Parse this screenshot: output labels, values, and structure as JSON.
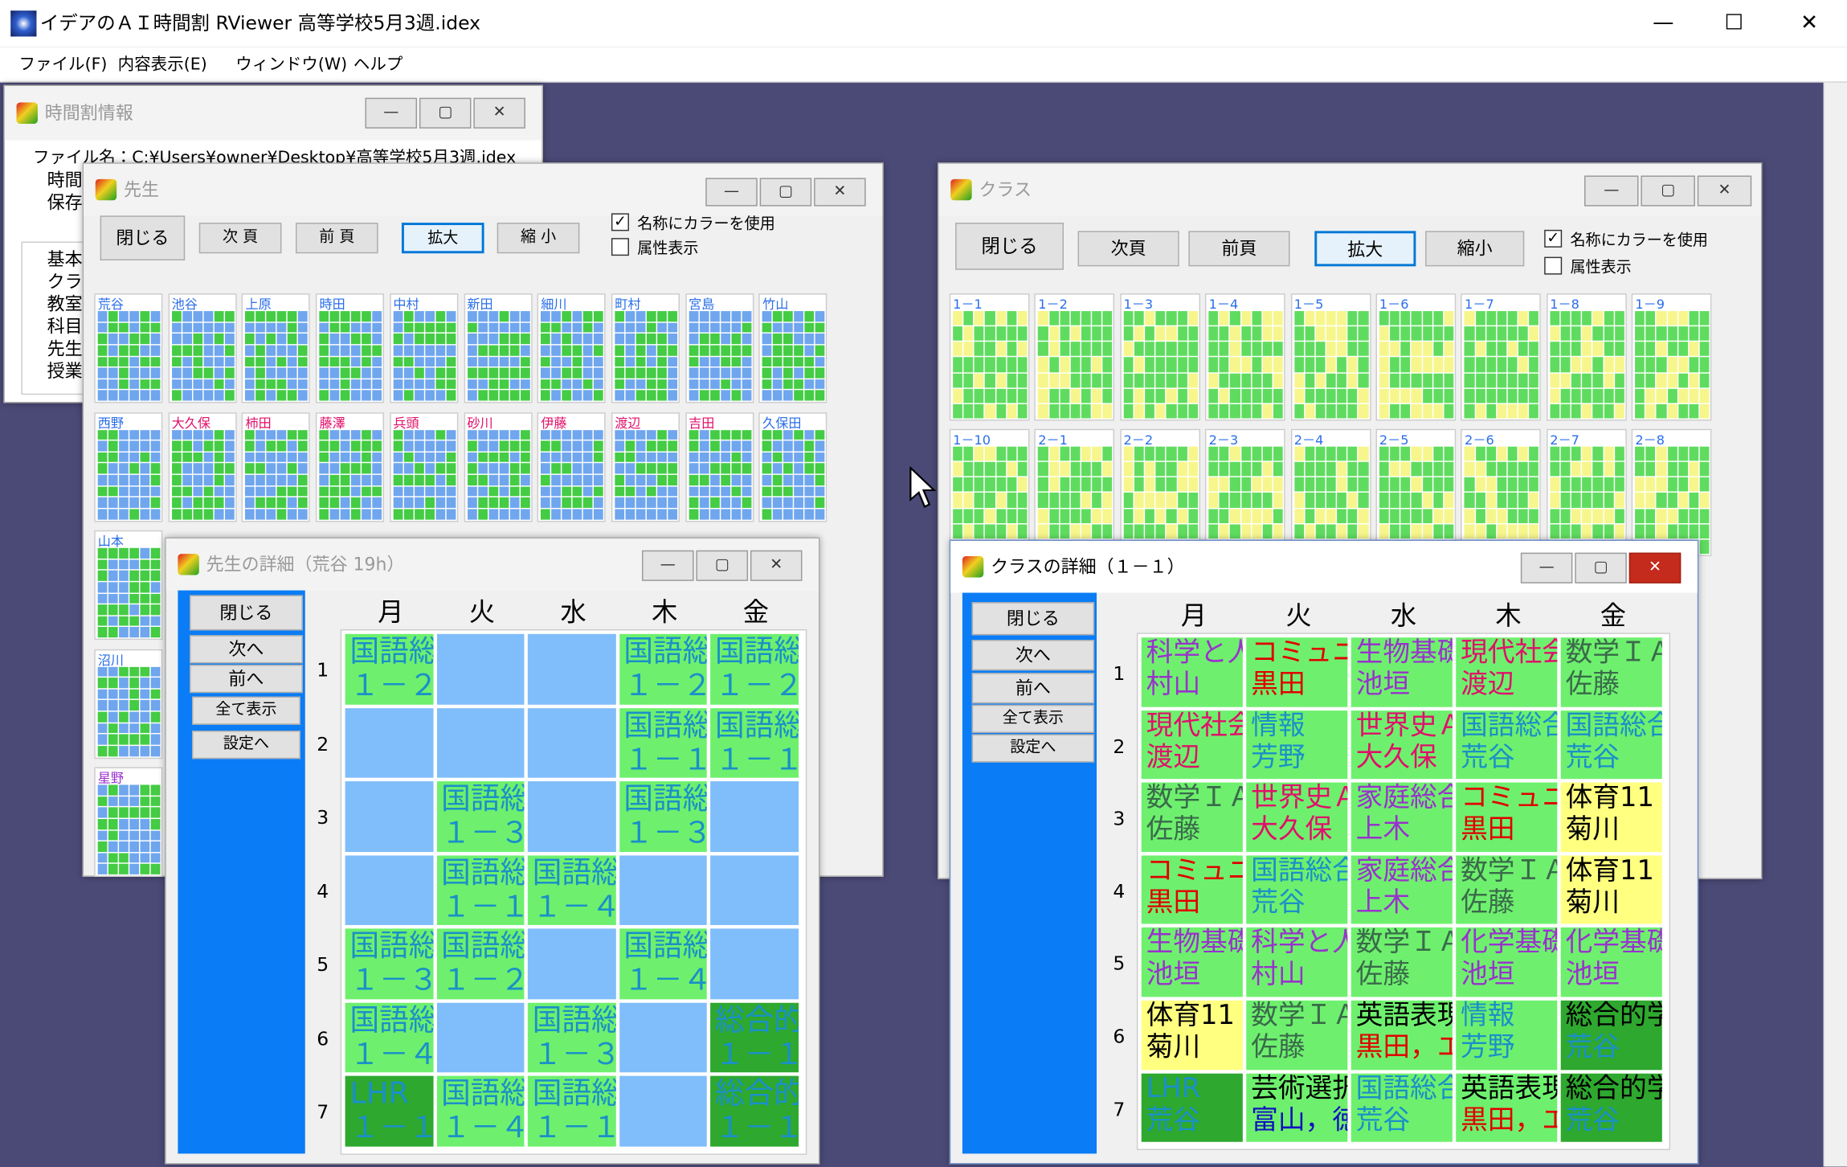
{
  "app": {
    "title": "イデアのＡＩ時間割 RViewer 高等学校5月3週.idex",
    "menu": [
      "ファイル(F)",
      "内容表示(E)",
      "ウィンドウ(W)",
      "ヘルプ"
    ]
  },
  "info_window": {
    "title": "時間割情報",
    "file": "ファイル名：C:¥Users¥owner¥Desktop¥高等学校5月3週.idex",
    "lines": [
      "時間",
      "保存"
    ],
    "items": [
      "基本",
      "クラス",
      "教室",
      "科目",
      "先生",
      "授業"
    ]
  },
  "teacher_window": {
    "title": "先生",
    "buttons": [
      "閉じる",
      "次 頁",
      "前 頁",
      "拡大",
      "縮 小"
    ],
    "checkboxes": [
      {
        "label": "名称にカラーを使用",
        "checked": true
      },
      {
        "label": "属性表示",
        "checked": false
      }
    ],
    "rows": [
      [
        {
          "name": "荒谷",
          "color": "#2a6ee8"
        },
        {
          "name": "池谷",
          "color": "#2a6ee8"
        },
        {
          "name": "上原",
          "color": "#2a6ee8"
        },
        {
          "name": "時田",
          "color": "#2a6ee8"
        },
        {
          "name": "中村",
          "color": "#2a6ee8"
        },
        {
          "name": "新田",
          "color": "#2a6ee8"
        },
        {
          "name": "細川",
          "color": "#2a6ee8"
        },
        {
          "name": "町村",
          "color": "#2a6ee8"
        },
        {
          "name": "宮島",
          "color": "#2a6ee8"
        },
        {
          "name": "竹山",
          "color": "#2a6ee8"
        }
      ],
      [
        {
          "name": "西野",
          "color": "#2a6ee8"
        },
        {
          "name": "大久保",
          "color": "#e0106a"
        },
        {
          "name": "柿田",
          "color": "#e0106a"
        },
        {
          "name": "藤澤",
          "color": "#e0106a"
        },
        {
          "name": "兵頭",
          "color": "#e0106a"
        },
        {
          "name": "砂川",
          "color": "#e0106a"
        },
        {
          "name": "伊藤",
          "color": "#e0106a"
        },
        {
          "name": "渡辺",
          "color": "#e0106a"
        },
        {
          "name": "吉田",
          "color": "#e0106a"
        },
        {
          "name": "久保田",
          "color": "#2a6ee8"
        }
      ],
      [
        {
          "name": "山本",
          "color": "#2a6ee8"
        }
      ],
      [
        {
          "name": "沼川",
          "color": "#2a6ee8"
        }
      ],
      [
        {
          "name": "星野",
          "color": "#9932cc"
        }
      ]
    ]
  },
  "class_window": {
    "title": "クラス",
    "buttons": [
      "閉じる",
      "次頁",
      "前頁",
      "拡大",
      "縮小"
    ],
    "checkboxes": [
      {
        "label": "名称にカラーを使用",
        "checked": true
      },
      {
        "label": "属性表示",
        "checked": false
      }
    ],
    "rows": [
      [
        "1－1",
        "1－2",
        "1－3",
        "1－4",
        "1－5",
        "1－6",
        "1－7",
        "1－8",
        "1－9"
      ],
      [
        "1－10",
        "2－1",
        "2－2",
        "2－3",
        "2－4",
        "2－5",
        "2－6",
        "2－7",
        "2－8"
      ]
    ]
  },
  "teacher_detail": {
    "title": "先生の詳細（荒谷 19h）",
    "buttons": [
      "閉じる",
      "次へ",
      "前へ",
      "全て表示",
      "設定へ"
    ],
    "days": [
      "月",
      "火",
      "水",
      "木",
      "金"
    ],
    "periods": [
      "1",
      "2",
      "3",
      "4",
      "5",
      "6",
      "7"
    ],
    "cells": [
      [
        {
          "subject": "国語総合",
          "class": "１－２",
          "color": "#1a90c8",
          "bg": "#6ef06e"
        },
        null,
        null,
        {
          "subject": "国語総合",
          "class": "１－２",
          "color": "#1a90c8",
          "bg": "#6ef06e"
        },
        {
          "subject": "国語総合",
          "class": "１－２",
          "color": "#1a90c8",
          "bg": "#6ef06e"
        }
      ],
      [
        null,
        null,
        null,
        {
          "subject": "国語総合",
          "class": "１－１",
          "color": "#1a90c8",
          "bg": "#6ef06e"
        },
        {
          "subject": "国語総合",
          "class": "１－１",
          "color": "#1a90c8",
          "bg": "#6ef06e"
        }
      ],
      [
        null,
        {
          "subject": "国語総合",
          "class": "１－３",
          "color": "#1a90c8",
          "bg": "#6ef06e"
        },
        null,
        {
          "subject": "国語総合",
          "class": "１－３",
          "color": "#1a90c8",
          "bg": "#6ef06e"
        },
        null
      ],
      [
        null,
        {
          "subject": "国語総合",
          "class": "１－１",
          "color": "#1a90c8",
          "bg": "#6ef06e"
        },
        {
          "subject": "国語総合",
          "class": "１－４",
          "color": "#1a90c8",
          "bg": "#6ef06e"
        },
        null,
        null
      ],
      [
        {
          "subject": "国語総合",
          "class": "１－３",
          "color": "#1a90c8",
          "bg": "#6ef06e"
        },
        {
          "subject": "国語総合",
          "class": "１－２",
          "color": "#1a90c8",
          "bg": "#6ef06e"
        },
        null,
        {
          "subject": "国語総合",
          "class": "１－４",
          "color": "#1a90c8",
          "bg": "#6ef06e"
        },
        null
      ],
      [
        {
          "subject": "国語総合",
          "class": "１－４",
          "color": "#1a90c8",
          "bg": "#6ef06e"
        },
        null,
        {
          "subject": "国語総合",
          "class": "１－３",
          "color": "#1a90c8",
          "bg": "#6ef06e"
        },
        null,
        {
          "subject": "総合的学習",
          "class": "１－１",
          "color": "#1a90c8",
          "bg": "#2ea82e"
        }
      ],
      [
        {
          "subject": "LHR",
          "class": "１－１",
          "color": "#1a90c8",
          "bg": "#2ea82e"
        },
        {
          "subject": "国語総合",
          "class": "１－４",
          "color": "#1a90c8",
          "bg": "#6ef06e"
        },
        {
          "subject": "国語総合",
          "class": "１－１",
          "color": "#1a90c8",
          "bg": "#6ef06e"
        },
        null,
        {
          "subject": "総合的学習",
          "class": "１－１",
          "color": "#1a90c8",
          "bg": "#2ea82e"
        }
      ]
    ],
    "empty_color": "#80bdfb"
  },
  "class_detail": {
    "title": "クラスの詳細（１－１）",
    "buttons": [
      "閉じる",
      "次へ",
      "前へ",
      "全て表示",
      "設定へ"
    ],
    "days": [
      "月",
      "火",
      "水",
      "木",
      "金"
    ],
    "periods": [
      "1",
      "2",
      "3",
      "4",
      "5",
      "6",
      "7"
    ],
    "cells": [
      [
        {
          "subject": "科学と人間生活",
          "teacher": "村山",
          "subject_color": "#9932cc",
          "teacher_color": "#9932cc",
          "bg": "#6ef06e"
        },
        {
          "subject": "コミュニケーション英語",
          "teacher": "黒田",
          "subject_color": "#e00000",
          "teacher_color": "#e00000",
          "bg": "#6ef06e"
        },
        {
          "subject": "生物基礎",
          "teacher": "池垣",
          "subject_color": "#9932cc",
          "teacher_color": "#9932cc",
          "bg": "#6ef06e"
        },
        {
          "subject": "現代社会",
          "teacher": "渡辺",
          "subject_color": "#e0106a",
          "teacher_color": "#e0106a",
          "bg": "#6ef06e"
        },
        {
          "subject": "数学ＩＡ",
          "teacher": "佐藤",
          "subject_color": "#3a6a4a",
          "teacher_color": "#3a6a4a",
          "bg": "#6ef06e"
        }
      ],
      [
        {
          "subject": "現代社会",
          "teacher": "渡辺",
          "subject_color": "#e0106a",
          "teacher_color": "#e0106a",
          "bg": "#6ef06e"
        },
        {
          "subject": "情報",
          "teacher": "芳野",
          "subject_color": "#1a90c8",
          "teacher_color": "#1a90c8",
          "bg": "#6ef06e"
        },
        {
          "subject": "世界史Ａ",
          "teacher": "大久保",
          "subject_color": "#e0106a",
          "teacher_color": "#e0106a",
          "bg": "#6ef06e"
        },
        {
          "subject": "国語総合",
          "teacher": "荒谷",
          "subject_color": "#1a90c8",
          "teacher_color": "#1a90c8",
          "bg": "#6ef06e"
        },
        {
          "subject": "国語総合",
          "teacher": "荒谷",
          "subject_color": "#1a90c8",
          "teacher_color": "#1a90c8",
          "bg": "#6ef06e"
        }
      ],
      [
        {
          "subject": "数学ＩＡ",
          "teacher": "佐藤",
          "subject_color": "#3a6a4a",
          "teacher_color": "#3a6a4a",
          "bg": "#6ef06e"
        },
        {
          "subject": "世界史Ａ",
          "teacher": "大久保",
          "subject_color": "#e0106a",
          "teacher_color": "#e0106a",
          "bg": "#6ef06e"
        },
        {
          "subject": "家庭総合",
          "teacher": "上木",
          "subject_color": "#9932cc",
          "teacher_color": "#9932cc",
          "bg": "#6ef06e"
        },
        {
          "subject": "コミュニケーション英語",
          "teacher": "黒田",
          "subject_color": "#e00000",
          "teacher_color": "#e00000",
          "bg": "#6ef06e"
        },
        {
          "subject": "体育11",
          "teacher": "菊川",
          "subject_color": "#000000",
          "teacher_color": "#000000",
          "bg": "#ffff80"
        }
      ],
      [
        {
          "subject": "コミュニケーション英語",
          "teacher": "黒田",
          "subject_color": "#e00000",
          "teacher_color": "#e00000",
          "bg": "#6ef06e"
        },
        {
          "subject": "国語総合",
          "teacher": "荒谷",
          "subject_color": "#1a90c8",
          "teacher_color": "#1a90c8",
          "bg": "#6ef06e"
        },
        {
          "subject": "家庭総合",
          "teacher": "上木",
          "subject_color": "#9932cc",
          "teacher_color": "#9932cc",
          "bg": "#6ef06e"
        },
        {
          "subject": "数学ＩＡ",
          "teacher": "佐藤",
          "subject_color": "#3a6a4a",
          "teacher_color": "#3a6a4a",
          "bg": "#6ef06e"
        },
        {
          "subject": "体育11",
          "teacher": "菊川",
          "subject_color": "#000000",
          "teacher_color": "#000000",
          "bg": "#ffff80"
        }
      ],
      [
        {
          "subject": "生物基礎",
          "teacher": "池垣",
          "subject_color": "#9932cc",
          "teacher_color": "#9932cc",
          "bg": "#6ef06e"
        },
        {
          "subject": "科学と人間生活",
          "teacher": "村山",
          "subject_color": "#9932cc",
          "teacher_color": "#9932cc",
          "bg": "#6ef06e"
        },
        {
          "subject": "数学ＩＡ",
          "teacher": "佐藤",
          "subject_color": "#3a6a4a",
          "teacher_color": "#3a6a4a",
          "bg": "#6ef06e"
        },
        {
          "subject": "化学基礎",
          "teacher": "池垣",
          "subject_color": "#9932cc",
          "teacher_color": "#9932cc",
          "bg": "#6ef06e"
        },
        {
          "subject": "化学基礎",
          "teacher": "池垣",
          "subject_color": "#9932cc",
          "teacher_color": "#9932cc",
          "bg": "#6ef06e"
        }
      ],
      [
        {
          "subject": "体育11",
          "teacher": "菊川",
          "subject_color": "#000000",
          "teacher_color": "#000000",
          "bg": "#ffff80"
        },
        {
          "subject": "数学ＩＡ",
          "teacher": "佐藤",
          "subject_color": "#3a6a4a",
          "teacher_color": "#3a6a4a",
          "bg": "#6ef06e"
        },
        {
          "subject": "英語表現",
          "teacher": "黒田，エ",
          "subject_color": "#000000",
          "teacher_color": "#e00000",
          "bg": "#6ef06e"
        },
        {
          "subject": "情報",
          "teacher": "芳野",
          "subject_color": "#1a90c8",
          "teacher_color": "#1a90c8",
          "bg": "#6ef06e"
        },
        {
          "subject": "総合的学習",
          "teacher": "荒谷",
          "subject_color": "#000000",
          "teacher_color": "#1a90c8",
          "bg": "#2ea82e"
        }
      ],
      [
        {
          "subject": "LHR",
          "teacher": "荒谷",
          "subject_color": "#1a90c8",
          "teacher_color": "#1a90c8",
          "bg": "#2ea82e"
        },
        {
          "subject": "芸術選択",
          "teacher": "富山，徳",
          "subject_color": "#000000",
          "teacher_color": "#1010c0",
          "bg": "#6ef06e"
        },
        {
          "subject": "国語総合",
          "teacher": "荒谷",
          "subject_color": "#1a90c8",
          "teacher_color": "#1a90c8",
          "bg": "#6ef06e"
        },
        {
          "subject": "英語表現",
          "teacher": "黒田，エ",
          "subject_color": "#000000",
          "teacher_color": "#e00000",
          "bg": "#6ef06e"
        },
        {
          "subject": "総合的学習",
          "teacher": "荒谷",
          "subject_color": "#000000",
          "teacher_color": "#1a90c8",
          "bg": "#2ea82e"
        }
      ]
    ]
  }
}
